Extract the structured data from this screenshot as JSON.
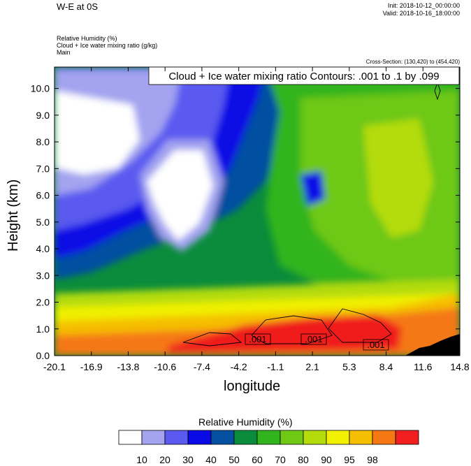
{
  "header": {
    "title": "W-E at 0S",
    "init": "Init: 2018-10-12_00:00:00",
    "valid": "Valid: 2018-10-16_18:00:00",
    "field1": "Relative Humidity   (%)",
    "field2": "Cloud + Ice water mixing ratio   (g/kg)",
    "field3": "Main",
    "cross_section": "Cross-Section: (130,420) to (454,420)"
  },
  "chart_data": {
    "type": "heatmap",
    "contour_label": "Cloud + Ice water mixing ratio Contours: .001 to .1 by .099",
    "xlabel": "longitude",
    "ylabel": "Height (km)",
    "xlim": [
      -20.1,
      14.8
    ],
    "ylim": [
      0.0,
      10.8
    ],
    "x_ticks": [
      "-20.1",
      "-16.9",
      "-13.8",
      "-10.6",
      "-7.4",
      "-4.2",
      "-1.1",
      "2.1",
      "5.3",
      "8.4",
      "11.6",
      "14.8"
    ],
    "y_ticks": [
      "0.0",
      "1.0",
      "2.0",
      "3.0",
      "4.0",
      "5.0",
      "6.0",
      "7.0",
      "8.0",
      "9.0",
      "10.0"
    ],
    "contour_labels": [
      ".001",
      ".001",
      ".001"
    ],
    "colorbar": {
      "title": "Relative Humidity  (%)",
      "labels": [
        "10",
        "20",
        "30",
        "40",
        "50",
        "60",
        "70",
        "80",
        "90",
        "95",
        "98"
      ],
      "colors": [
        "#ffffff",
        "#a3a3f0",
        "#5a5af0",
        "#0a0ae6",
        "#0550a0",
        "#0a8c3c",
        "#32b41e",
        "#6ec814",
        "#b4dc0a",
        "#f0f000",
        "#f5be00",
        "#f57814",
        "#f01e1e"
      ]
    }
  }
}
